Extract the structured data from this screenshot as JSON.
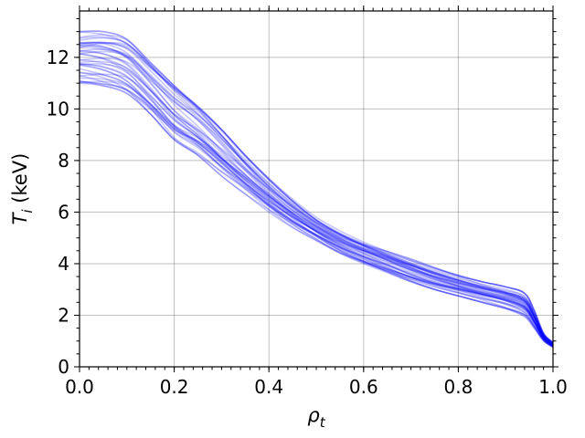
{
  "chart_data": {
    "type": "line",
    "xlabel_symbol": "ρ",
    "xlabel_sub": "t",
    "ylabel_symbol": "T",
    "ylabel_sub": "i",
    "ylabel_unit": " (keV)",
    "xlim": [
      0,
      1
    ],
    "ylim": [
      0,
      13.8
    ],
    "xticks": [
      0.0,
      0.2,
      0.4,
      0.6,
      0.8,
      1.0
    ],
    "xtick_labels": [
      "0.0",
      "0.2",
      "0.4",
      "0.6",
      "0.8",
      "1.0"
    ],
    "yticks": [
      0,
      2,
      4,
      6,
      8,
      10,
      12
    ],
    "ytick_labels": [
      "0",
      "2",
      "4",
      "6",
      "8",
      "10",
      "12"
    ],
    "grid": true,
    "line_color": "#0000ff",
    "series_count": 40,
    "x": [
      0.0,
      0.05,
      0.1,
      0.15,
      0.2,
      0.25,
      0.3,
      0.35,
      0.4,
      0.45,
      0.5,
      0.55,
      0.6,
      0.65,
      0.7,
      0.75,
      0.8,
      0.85,
      0.9,
      0.94,
      0.96,
      0.98,
      1.0
    ],
    "envelope_min": [
      11.0,
      10.9,
      10.6,
      9.8,
      8.8,
      8.2,
      7.4,
      6.7,
      6.0,
      5.4,
      4.9,
      4.4,
      4.0,
      3.65,
      3.3,
      3.0,
      2.75,
      2.5,
      2.25,
      1.95,
      1.5,
      1.0,
      0.75
    ],
    "envelope_max": [
      13.0,
      13.0,
      12.7,
      11.8,
      10.9,
      10.1,
      9.2,
      8.2,
      7.3,
      6.5,
      5.8,
      5.3,
      4.9,
      4.55,
      4.2,
      3.85,
      3.55,
      3.3,
      3.1,
      2.85,
      2.2,
      1.3,
      0.95
    ],
    "mean_profile": [
      12.2,
      12.2,
      11.8,
      10.9,
      10.0,
      9.2,
      8.3,
      7.4,
      6.6,
      5.9,
      5.3,
      4.85,
      4.45,
      4.1,
      3.75,
      3.45,
      3.15,
      2.9,
      2.65,
      2.4,
      1.8,
      1.1,
      0.85
    ]
  }
}
